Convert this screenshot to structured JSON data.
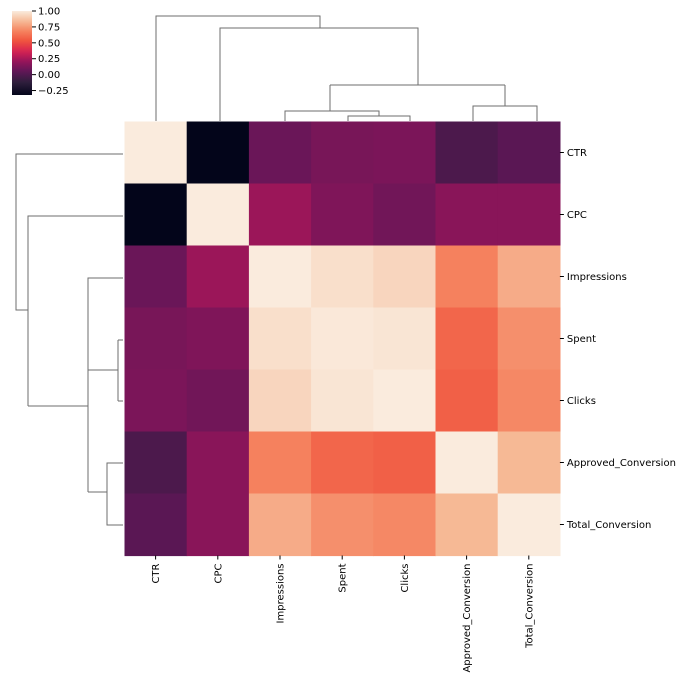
{
  "chart_data": {
    "type": "heatmap",
    "title": "",
    "rows": [
      "CTR",
      "CPC",
      "Impressions",
      "Spent",
      "Clicks",
      "Approved_Conversion",
      "Total_Conversion"
    ],
    "columns": [
      "CTR",
      "CPC",
      "Impressions",
      "Spent",
      "Clicks",
      "Approved_Conversion",
      "Total_Conversion"
    ],
    "values": [
      [
        1.0,
        -0.32,
        0.08,
        0.12,
        0.13,
        -0.02,
        0.03
      ],
      [
        -0.32,
        1.0,
        0.22,
        0.14,
        0.1,
        0.17,
        0.17
      ],
      [
        0.08,
        0.22,
        1.0,
        0.96,
        0.93,
        0.68,
        0.8
      ],
      [
        0.12,
        0.14,
        0.96,
        0.99,
        0.98,
        0.59,
        0.72
      ],
      [
        0.13,
        0.1,
        0.93,
        0.98,
        1.0,
        0.57,
        0.7
      ],
      [
        -0.02,
        0.17,
        0.68,
        0.59,
        0.57,
        1.0,
        0.84
      ],
      [
        0.03,
        0.17,
        0.8,
        0.72,
        0.7,
        0.84,
        1.0
      ]
    ],
    "colorbar": {
      "vmin": -0.32,
      "vmax": 1.0,
      "ticks": [
        1.0,
        0.75,
        0.5,
        0.25,
        0.0,
        -0.25
      ],
      "tick_labels": [
        "1.00",
        "0.75",
        "0.50",
        "0.25",
        "0.00",
        "−0.25"
      ],
      "colormap": "rocket"
    },
    "dendrograms": [
      "top (columns)",
      "left (rows)"
    ],
    "grid": false
  }
}
